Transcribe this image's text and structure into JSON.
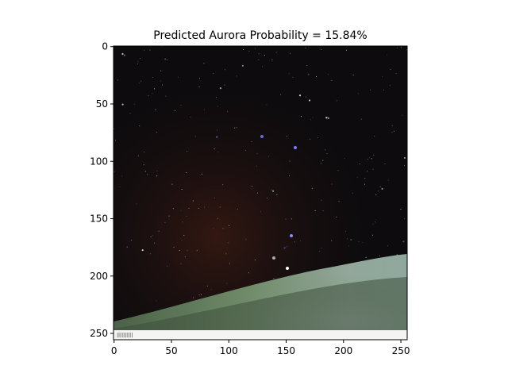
{
  "chart_data": {
    "type": "image",
    "title": "Predicted Aurora Probability = 15.84%",
    "xlabel": "",
    "ylabel": "",
    "xlim": [
      0,
      256
    ],
    "ylim": [
      256,
      0
    ],
    "image_size": [
      256,
      256
    ],
    "x_ticks": [
      0,
      50,
      100,
      150,
      200,
      250
    ],
    "y_ticks": [
      0,
      50,
      100,
      150,
      200,
      250
    ],
    "grid": false,
    "image_content": "night sky with stars over a faint green aurora band along the horizon",
    "colors": {
      "sky": "#0d0b0e",
      "sky_warm": "#2a1410",
      "aurora": "#6f8a68",
      "aurora_glow": "#9fb0a6",
      "horizon_band": "#e8ebe6"
    }
  }
}
